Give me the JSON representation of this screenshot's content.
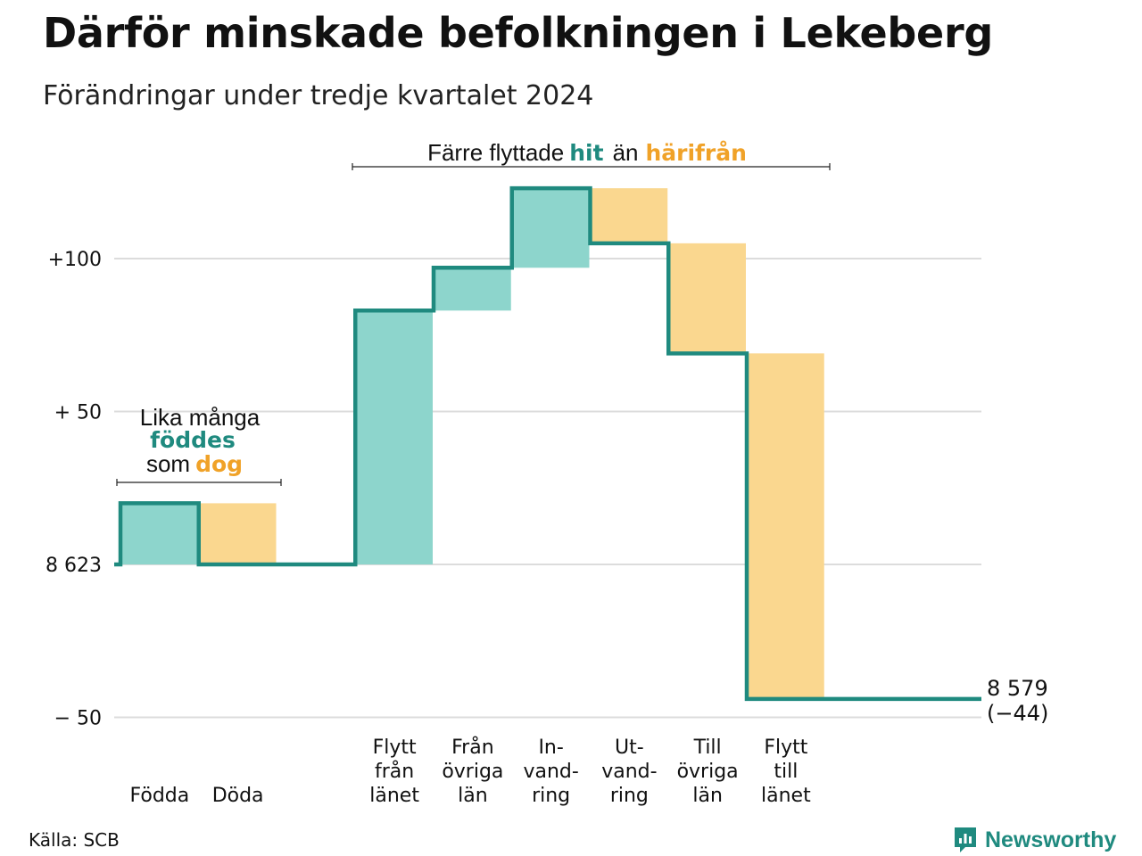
{
  "title": "Därför minskade befolkningen i Lekeberg",
  "subtitle": "Förändringar under tredje kvartalet 2024",
  "source": "Källa: SCB",
  "brand": {
    "name": "Newsworthy",
    "icon": "newsworthy-logo-icon"
  },
  "colors": {
    "line": "#1f8a7f",
    "increase_fill": "#8dd5cc",
    "decrease_fill": "#fad78f",
    "hit": "#1f8a7f",
    "harifran": "#f0a228",
    "grid": "#dcdcdc"
  },
  "annotations": {
    "births": {
      "line1": "Lika många",
      "line2": "föddes",
      "line3_a": "som",
      "line3_b": "dog"
    },
    "migration": {
      "part1": "Färre flyttade",
      "part2": "hit",
      "part3": "än",
      "part4": "härifrån"
    }
  },
  "chart_data": {
    "type": "waterfall",
    "title": "Därför minskade befolkningen i Lekeberg",
    "subtitle": "Förändringar under tredje kvartalet 2024",
    "start_value": 8623,
    "end_value": 8579,
    "net_change": -44,
    "end_label_value": "8 579",
    "end_label_change": "(−44)",
    "ylim": [
      -50,
      123
    ],
    "ytick_values": [
      100,
      50,
      0,
      -50
    ],
    "ytick_labels": [
      "+100",
      "+ 50",
      "8 623",
      "−  50"
    ],
    "grid": true,
    "categories": [
      {
        "label": [
          "",
          "",
          "Födda"
        ],
        "value": 20,
        "kind": "increase"
      },
      {
        "label": [
          "",
          "",
          "Döda"
        ],
        "value": -20,
        "kind": "decrease"
      },
      {
        "label": [
          "",
          "",
          ""
        ],
        "value": 0,
        "kind": "spacer"
      },
      {
        "label": [
          "Flytt",
          "från",
          "länet"
        ],
        "value": 83,
        "kind": "increase"
      },
      {
        "label": [
          "Från",
          "övriga",
          "län"
        ],
        "value": 14,
        "kind": "increase"
      },
      {
        "label": [
          "In-",
          "vand-",
          "ring"
        ],
        "value": 26,
        "kind": "increase"
      },
      {
        "label": [
          "Ut-",
          "vand-",
          "ring"
        ],
        "value": -18,
        "kind": "decrease"
      },
      {
        "label": [
          "Till",
          "övriga",
          "län"
        ],
        "value": -36,
        "kind": "decrease"
      },
      {
        "label": [
          "Flytt",
          "till",
          "länet"
        ],
        "value": -113,
        "kind": "decrease"
      }
    ]
  }
}
